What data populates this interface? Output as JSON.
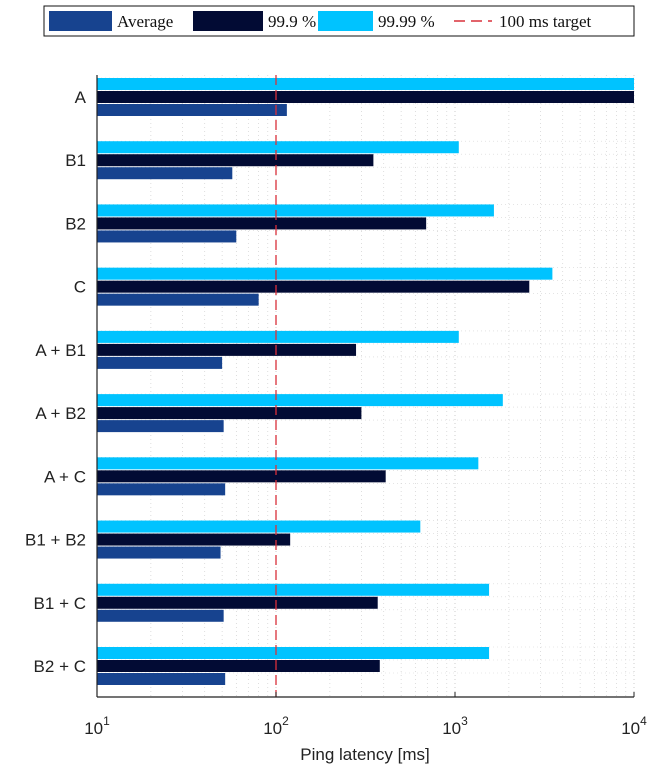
{
  "chart_data": {
    "type": "bar",
    "orientation": "horizontal",
    "x_scale": "log",
    "xlim": [
      10,
      10000
    ],
    "xlabel": "Ping latency [ms]",
    "x_tick_labels": [
      {
        "base": "10",
        "exp": "1"
      },
      {
        "base": "10",
        "exp": "2"
      },
      {
        "base": "10",
        "exp": "3"
      },
      {
        "base": "10",
        "exp": "4"
      }
    ],
    "grid": true,
    "legend_position": "top",
    "categories": [
      "A",
      "B1",
      "B2",
      "C",
      "A + B1",
      "A + B2",
      "A + C",
      "B1 + B2",
      "B1 + C",
      "B2 + C"
    ],
    "series": [
      {
        "name": "Average",
        "color": "#17438f",
        "values": [
          115,
          57,
          60,
          80,
          50,
          51,
          52,
          49,
          51,
          52
        ]
      },
      {
        "name": "99.9 %",
        "color": "#020b34",
        "values": [
          10000,
          350,
          690,
          2600,
          280,
          300,
          410,
          120,
          370,
          380
        ]
      },
      {
        "name": "99.99 %",
        "color": "#00c3ff",
        "values": [
          10000,
          1050,
          1650,
          3500,
          1050,
          1850,
          1350,
          640,
          1550,
          1550
        ]
      }
    ],
    "reference_line": {
      "name": "100 ms target",
      "value": 100,
      "color": "#d9303a",
      "style": "dashed"
    }
  }
}
